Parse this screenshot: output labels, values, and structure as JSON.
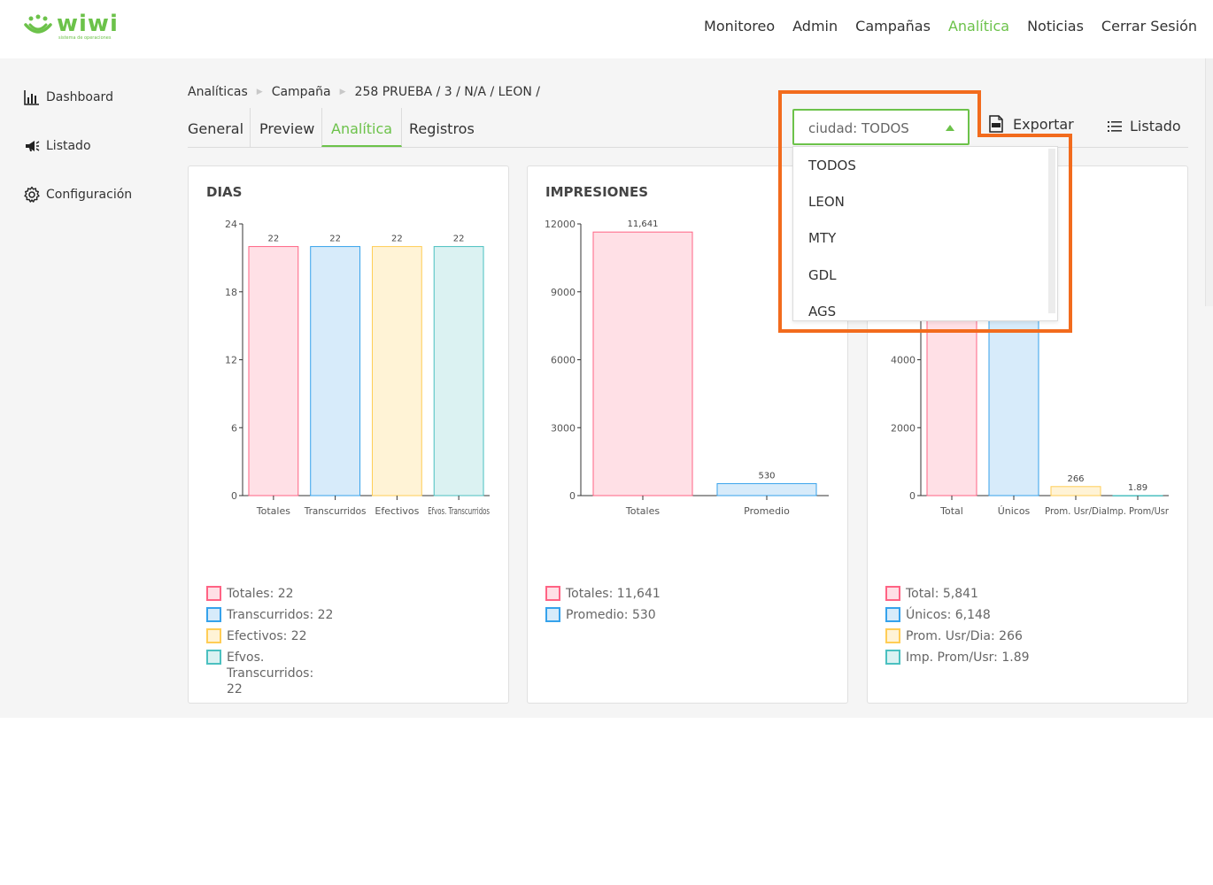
{
  "header": {
    "logo_text": "wiwi",
    "logo_subtitle": "sistema de operaciones",
    "nav": [
      {
        "label": "Monitoreo",
        "active": false
      },
      {
        "label": "Admin",
        "active": false
      },
      {
        "label": "Campañas",
        "active": false
      },
      {
        "label": "Analítica",
        "active": true
      },
      {
        "label": "Noticias",
        "active": false
      },
      {
        "label": "Cerrar Sesión",
        "active": false
      }
    ]
  },
  "sidebar": {
    "items": [
      {
        "label": "Dashboard",
        "icon": "bar-chart-icon"
      },
      {
        "label": "Listado",
        "icon": "megaphone-icon"
      },
      {
        "label": "Configuración",
        "icon": "gear-icon"
      }
    ]
  },
  "breadcrumb": {
    "items": [
      "Analíticas",
      "Campaña",
      "258 PRUEBA / 3 / N/A / LEON /"
    ]
  },
  "tabs": [
    {
      "label": "General",
      "active": false
    },
    {
      "label": "Preview",
      "active": false
    },
    {
      "label": "Analítica",
      "active": true
    },
    {
      "label": "Registros",
      "active": false
    }
  ],
  "toolbar": {
    "filter_value": "ciudad: TODOS",
    "export_label": "Exportar",
    "list_label": "Listado"
  },
  "dropdown": {
    "options": [
      "TODOS",
      "LEON",
      "MTY",
      "GDL",
      "AGS"
    ]
  },
  "colors": {
    "accent": "#6cc24a",
    "highlight": "#f26b1d",
    "pink_fill": "#ffe0e6",
    "pink_stroke": "#ff6384",
    "blue_fill": "#d7ebfa",
    "blue_stroke": "#36a2eb",
    "yellow_fill": "#fff3d6",
    "yellow_stroke": "#ffcd56",
    "teal_fill": "#dbf2f2",
    "teal_stroke": "#4bc0c0"
  },
  "chart_data": [
    {
      "type": "bar",
      "title": "DIAS",
      "categories": [
        "Totales",
        "Transcurridos",
        "Efectivos",
        "Efvos. Transcurridos"
      ],
      "values": [
        22,
        22,
        22,
        22
      ],
      "value_labels": [
        "22",
        "22",
        "22",
        "22"
      ],
      "ylim": [
        0,
        24
      ],
      "yticks": [
        0,
        6,
        12,
        18,
        24
      ],
      "legend": [
        {
          "label": "Totales: 22",
          "color": "pink"
        },
        {
          "label": "Transcurridos: 22",
          "color": "blue"
        },
        {
          "label": "Efectivos: 22",
          "color": "yellow"
        },
        {
          "label": "Efvos. Transcurridos: 22",
          "color": "teal"
        }
      ]
    },
    {
      "type": "bar",
      "title": "IMPRESIONES",
      "categories": [
        "Totales",
        "Promedio"
      ],
      "values": [
        11641,
        530
      ],
      "value_labels": [
        "11,641",
        "530"
      ],
      "ylim": [
        0,
        12000
      ],
      "yticks": [
        0,
        3000,
        6000,
        9000,
        12000
      ],
      "legend": [
        {
          "label": "Totales: 11,641",
          "color": "pink"
        },
        {
          "label": "Promedio: 530",
          "color": "blue"
        }
      ]
    },
    {
      "type": "bar",
      "title": "",
      "categories": [
        "Total",
        "Únicos",
        "Prom. Usr/Dia",
        "Imp. Prom/Usr"
      ],
      "values": [
        5841,
        6148,
        266,
        1.89
      ],
      "value_labels": [
        "",
        "",
        "266",
        "1.89"
      ],
      "ylim": [
        0,
        8000
      ],
      "yticks": [
        0,
        2000,
        4000
      ],
      "legend": [
        {
          "label": "Total: 5,841",
          "color": "pink"
        },
        {
          "label": "Únicos: 6,148",
          "color": "blue"
        },
        {
          "label": "Prom. Usr/Dia: 266",
          "color": "yellow"
        },
        {
          "label": "Imp. Prom/Usr: 1.89",
          "color": "teal"
        }
      ]
    }
  ]
}
